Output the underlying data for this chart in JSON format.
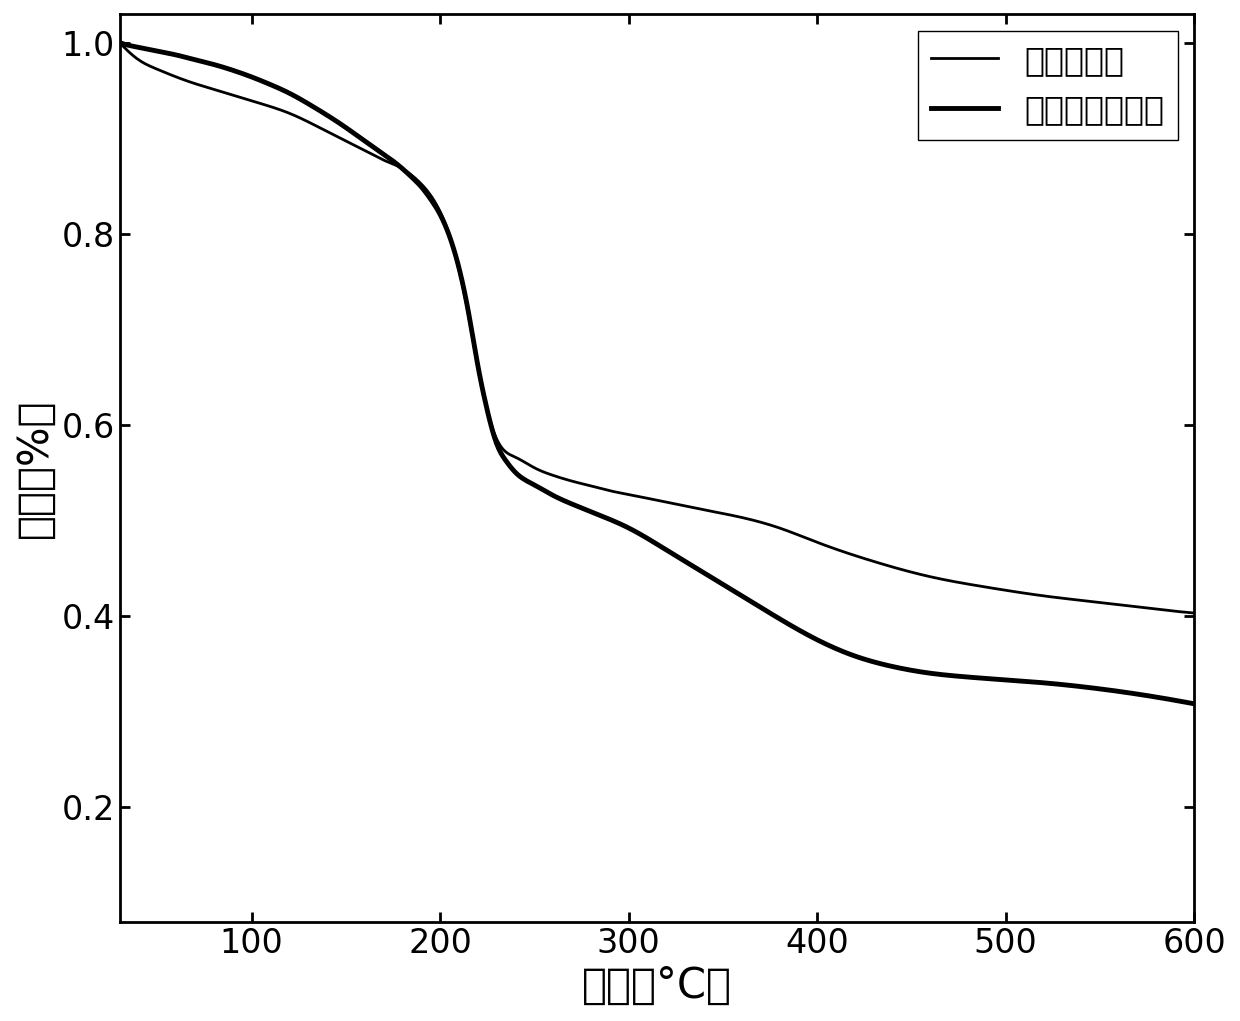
{
  "xlabel": "温度（°C）",
  "ylabel": "重量（%）",
  "xlim": [
    30,
    600
  ],
  "ylim": [
    0.08,
    1.03
  ],
  "yticks": [
    0.2,
    0.4,
    0.6,
    0.8,
    1.0
  ],
  "xticks": [
    100,
    200,
    300,
    400,
    500,
    600
  ],
  "legend_labels": [
    "氧化石墨烯",
    "改性氧化石墨烯"
  ],
  "thin_lw": 2.0,
  "thick_lw": 3.5,
  "line_color": "#000000",
  "bg_color": "#ffffff",
  "xlabel_fontsize": 30,
  "ylabel_fontsize": 30,
  "tick_fontsize": 24,
  "legend_fontsize": 24,
  "curve1_x": [
    30,
    35,
    40,
    50,
    60,
    70,
    80,
    90,
    100,
    110,
    120,
    130,
    140,
    150,
    155,
    160,
    165,
    170,
    175,
    180,
    185,
    190,
    195,
    200,
    205,
    210,
    215,
    220,
    225,
    230,
    240,
    250,
    260,
    270,
    280,
    290,
    300,
    320,
    340,
    360,
    380,
    400,
    430,
    460,
    490,
    520,
    550,
    580,
    600
  ],
  "curve1_y": [
    1.0,
    0.99,
    0.982,
    0.972,
    0.964,
    0.957,
    0.951,
    0.945,
    0.939,
    0.933,
    0.926,
    0.917,
    0.907,
    0.897,
    0.892,
    0.887,
    0.882,
    0.877,
    0.873,
    0.868,
    0.861,
    0.852,
    0.84,
    0.823,
    0.798,
    0.762,
    0.715,
    0.66,
    0.615,
    0.585,
    0.566,
    0.555,
    0.547,
    0.541,
    0.536,
    0.531,
    0.527,
    0.519,
    0.511,
    0.503,
    0.492,
    0.477,
    0.457,
    0.441,
    0.43,
    0.421,
    0.414,
    0.407,
    0.403
  ],
  "curve2_x": [
    30,
    35,
    40,
    50,
    60,
    70,
    80,
    90,
    100,
    110,
    120,
    130,
    140,
    150,
    155,
    160,
    165,
    170,
    175,
    180,
    185,
    190,
    195,
    200,
    205,
    210,
    215,
    220,
    225,
    230,
    235,
    240,
    250,
    260,
    270,
    280,
    290,
    300,
    320,
    340,
    360,
    380,
    400,
    420,
    440,
    460,
    480,
    500,
    520,
    540,
    560,
    580,
    600
  ],
  "curve2_y": [
    1.0,
    0.997,
    0.995,
    0.991,
    0.987,
    0.982,
    0.977,
    0.971,
    0.964,
    0.956,
    0.947,
    0.936,
    0.924,
    0.911,
    0.904,
    0.897,
    0.89,
    0.883,
    0.876,
    0.868,
    0.859,
    0.849,
    0.836,
    0.82,
    0.797,
    0.764,
    0.718,
    0.662,
    0.615,
    0.58,
    0.562,
    0.55,
    0.537,
    0.526,
    0.517,
    0.509,
    0.501,
    0.492,
    0.469,
    0.445,
    0.421,
    0.397,
    0.375,
    0.358,
    0.347,
    0.34,
    0.336,
    0.333,
    0.33,
    0.326,
    0.321,
    0.315,
    0.308
  ]
}
